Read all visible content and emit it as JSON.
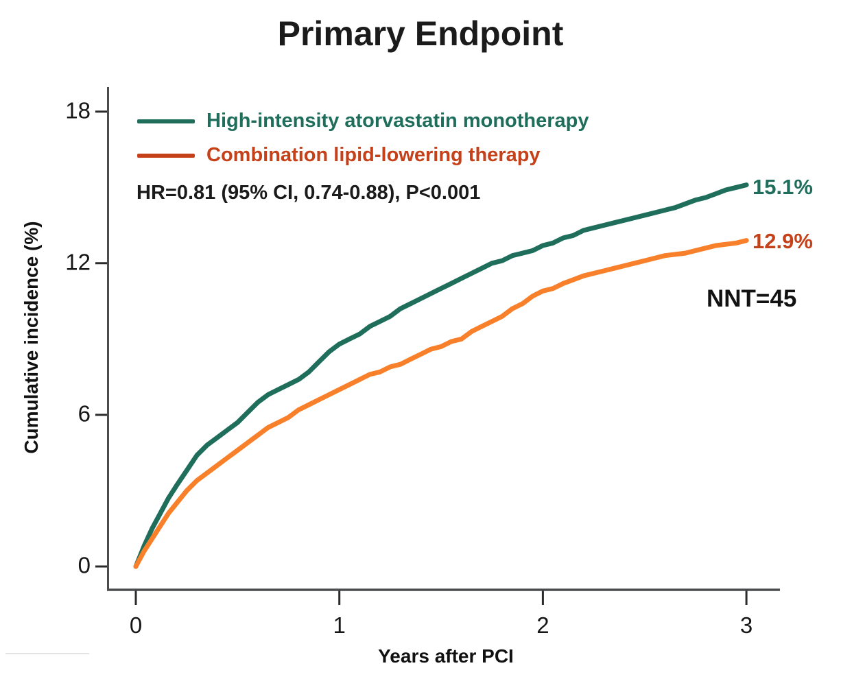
{
  "title": "Primary Endpoint",
  "colors": {
    "monotherapy": "#1F6E5C",
    "combination_curve": "#F8802A",
    "combination_text": "#C5411A",
    "axis": "#4A4C4E",
    "tick": "#2B2B2B"
  },
  "legend": {
    "items": [
      {
        "label": "High-intensity atorvastatin monotherapy",
        "color": "#1F6E5C"
      },
      {
        "label": "Combination lipid-lowering therapy",
        "color": "#C5411A"
      }
    ]
  },
  "annotations": {
    "hr_text": "HR=0.81 (95% CI, 0.74-0.88), P<0.001",
    "monotherapy_end_label": "15.1%",
    "combination_end_label": "12.9%",
    "nnt_label": "NNT=45"
  },
  "axes": {
    "ylabel": "Cumulative incidence (%)",
    "xlabel": "Years after PCI"
  },
  "chart_data": {
    "type": "line",
    "title": "Primary Endpoint",
    "xlabel": "Years after PCI",
    "ylabel": "Cumulative incidence (%)",
    "xlim": [
      0,
      3
    ],
    "ylim": [
      0,
      18
    ],
    "x_ticks": [
      0,
      1,
      2,
      3
    ],
    "y_ticks": [
      0,
      6,
      12,
      18
    ],
    "grid": false,
    "legend_position": "top-left",
    "annotations": [
      "HR=0.81 (95% CI, 0.74-0.88), P<0.001",
      "NNT=45"
    ],
    "series": [
      {
        "name": "High-intensity atorvastatin monotherapy",
        "color": "#1F6E5C",
        "end_value_pct": 15.1,
        "end_label": "15.1%",
        "points": [
          [
            0,
            0
          ],
          [
            0.04,
            0.8
          ],
          [
            0.08,
            1.5
          ],
          [
            0.12,
            2.1
          ],
          [
            0.16,
            2.7
          ],
          [
            0.2,
            3.2
          ],
          [
            0.25,
            3.8
          ],
          [
            0.3,
            4.4
          ],
          [
            0.35,
            4.8
          ],
          [
            0.4,
            5.1
          ],
          [
            0.45,
            5.4
          ],
          [
            0.5,
            5.7
          ],
          [
            0.55,
            6.1
          ],
          [
            0.6,
            6.5
          ],
          [
            0.65,
            6.8
          ],
          [
            0.7,
            7.0
          ],
          [
            0.75,
            7.2
          ],
          [
            0.8,
            7.4
          ],
          [
            0.85,
            7.7
          ],
          [
            0.9,
            8.1
          ],
          [
            0.95,
            8.5
          ],
          [
            1.0,
            8.8
          ],
          [
            1.05,
            9.0
          ],
          [
            1.1,
            9.2
          ],
          [
            1.15,
            9.5
          ],
          [
            1.2,
            9.7
          ],
          [
            1.25,
            9.9
          ],
          [
            1.3,
            10.2
          ],
          [
            1.35,
            10.4
          ],
          [
            1.4,
            10.6
          ],
          [
            1.45,
            10.8
          ],
          [
            1.5,
            11.0
          ],
          [
            1.55,
            11.2
          ],
          [
            1.6,
            11.4
          ],
          [
            1.65,
            11.6
          ],
          [
            1.7,
            11.8
          ],
          [
            1.75,
            12.0
          ],
          [
            1.8,
            12.1
          ],
          [
            1.85,
            12.3
          ],
          [
            1.9,
            12.4
          ],
          [
            1.95,
            12.5
          ],
          [
            2.0,
            12.7
          ],
          [
            2.05,
            12.8
          ],
          [
            2.1,
            13.0
          ],
          [
            2.15,
            13.1
          ],
          [
            2.2,
            13.3
          ],
          [
            2.25,
            13.4
          ],
          [
            2.3,
            13.5
          ],
          [
            2.35,
            13.6
          ],
          [
            2.4,
            13.7
          ],
          [
            2.45,
            13.8
          ],
          [
            2.5,
            13.9
          ],
          [
            2.55,
            14.0
          ],
          [
            2.6,
            14.1
          ],
          [
            2.65,
            14.2
          ],
          [
            2.7,
            14.35
          ],
          [
            2.75,
            14.5
          ],
          [
            2.8,
            14.6
          ],
          [
            2.85,
            14.75
          ],
          [
            2.9,
            14.9
          ],
          [
            2.95,
            15.0
          ],
          [
            3.0,
            15.1
          ]
        ]
      },
      {
        "name": "Combination lipid-lowering therapy",
        "color": "#F8802A",
        "end_value_pct": 12.9,
        "end_label": "12.9%",
        "points": [
          [
            0,
            0
          ],
          [
            0.04,
            0.6
          ],
          [
            0.08,
            1.1
          ],
          [
            0.12,
            1.6
          ],
          [
            0.16,
            2.1
          ],
          [
            0.2,
            2.5
          ],
          [
            0.25,
            3.0
          ],
          [
            0.3,
            3.4
          ],
          [
            0.35,
            3.7
          ],
          [
            0.4,
            4.0
          ],
          [
            0.45,
            4.3
          ],
          [
            0.5,
            4.6
          ],
          [
            0.55,
            4.9
          ],
          [
            0.6,
            5.2
          ],
          [
            0.65,
            5.5
          ],
          [
            0.7,
            5.7
          ],
          [
            0.75,
            5.9
          ],
          [
            0.8,
            6.2
          ],
          [
            0.85,
            6.4
          ],
          [
            0.9,
            6.6
          ],
          [
            0.95,
            6.8
          ],
          [
            1.0,
            7.0
          ],
          [
            1.05,
            7.2
          ],
          [
            1.1,
            7.4
          ],
          [
            1.15,
            7.6
          ],
          [
            1.2,
            7.7
          ],
          [
            1.25,
            7.9
          ],
          [
            1.3,
            8.0
          ],
          [
            1.35,
            8.2
          ],
          [
            1.4,
            8.4
          ],
          [
            1.45,
            8.6
          ],
          [
            1.5,
            8.7
          ],
          [
            1.55,
            8.9
          ],
          [
            1.6,
            9.0
          ],
          [
            1.65,
            9.3
          ],
          [
            1.7,
            9.5
          ],
          [
            1.75,
            9.7
          ],
          [
            1.8,
            9.9
          ],
          [
            1.85,
            10.2
          ],
          [
            1.9,
            10.4
          ],
          [
            1.95,
            10.7
          ],
          [
            2.0,
            10.9
          ],
          [
            2.05,
            11.0
          ],
          [
            2.1,
            11.2
          ],
          [
            2.15,
            11.35
          ],
          [
            2.2,
            11.5
          ],
          [
            2.25,
            11.6
          ],
          [
            2.3,
            11.7
          ],
          [
            2.35,
            11.8
          ],
          [
            2.4,
            11.9
          ],
          [
            2.45,
            12.0
          ],
          [
            2.5,
            12.1
          ],
          [
            2.55,
            12.2
          ],
          [
            2.6,
            12.3
          ],
          [
            2.65,
            12.35
          ],
          [
            2.7,
            12.4
          ],
          [
            2.75,
            12.5
          ],
          [
            2.8,
            12.6
          ],
          [
            2.85,
            12.7
          ],
          [
            2.9,
            12.75
          ],
          [
            2.95,
            12.8
          ],
          [
            3.0,
            12.9
          ]
        ]
      }
    ]
  }
}
